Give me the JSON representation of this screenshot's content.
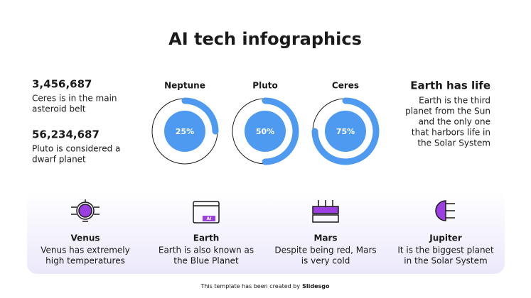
{
  "header": {
    "title": "AI tech infographics"
  },
  "stats": [
    {
      "number": "3,456,687",
      "lines": [
        "Ceres is in the main",
        "asteroid belt"
      ]
    },
    {
      "number": "56,234,687",
      "lines": [
        "Pluto is considered a",
        "dwarf planet"
      ]
    }
  ],
  "gauges": [
    {
      "name": "Neptune",
      "value": 25,
      "label": "25%"
    },
    {
      "name": "Pluto",
      "value": 50,
      "label": "50%"
    },
    {
      "name": "Ceres",
      "value": 75,
      "label": "75%"
    }
  ],
  "aside": {
    "title": "Earth has life",
    "lines": [
      "Earth is the third",
      "planet from the Sun",
      "and the only one",
      "that harbors life in",
      "the Solar System"
    ]
  },
  "cards": [
    {
      "title": "Venus",
      "lines": [
        "Venus has extremely",
        "high temperatures"
      ]
    },
    {
      "title": "Earth",
      "icon_text": "AI",
      "lines": [
        "Earth is also known as",
        "the Blue Planet"
      ]
    },
    {
      "title": "Mars",
      "lines": [
        "Despite being red, Mars",
        "is very cold"
      ]
    },
    {
      "title": "Jupiter",
      "lines": [
        "It is the biggest planet",
        "in the Solar System"
      ]
    }
  ],
  "footer": {
    "text": "This template has been created by",
    "brand": "Slidesgo"
  }
}
